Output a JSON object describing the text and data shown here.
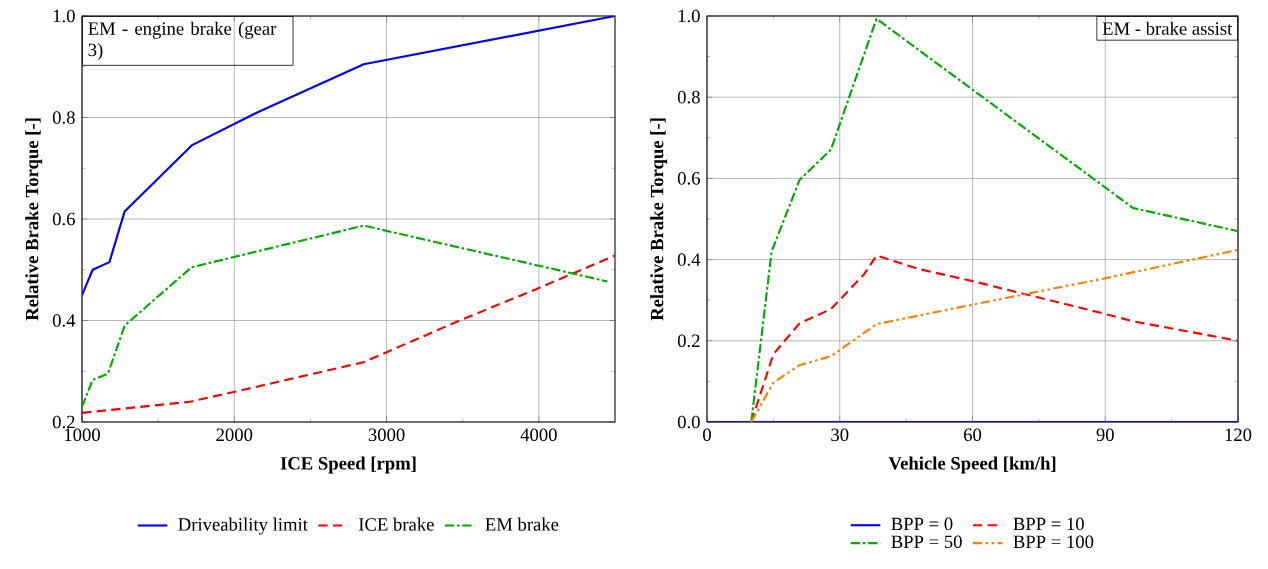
{
  "chart_data": [
    {
      "type": "line",
      "xlabel": "ICE Speed [rpm]",
      "ylabel": "Relative Brake Torque [-]",
      "annotations": [
        "EM - engine brake (gear 3)"
      ],
      "xlim": [
        1000,
        4500
      ],
      "xticks": [
        1000,
        2000,
        3000,
        4000
      ],
      "ylim": [
        0.2,
        1.0
      ],
      "yticks": [
        {
          "value": 0.2,
          "label": "0.2"
        },
        {
          "value": 0.4,
          "label": "0.4"
        },
        {
          "value": 0.6,
          "label": "0.6"
        },
        {
          "value": 0.8,
          "label": "0.8"
        },
        {
          "value": 1.0,
          "label": "1.0"
        }
      ],
      "grid": true,
      "legend": "bottom",
      "series": [
        {
          "name": "Driveability limit",
          "color": "#0000ff",
          "line_style": "solid",
          "x": [
            1000,
            1070,
            1180,
            1280,
            1720,
            2150,
            2850,
            4500
          ],
          "values": [
            0.45,
            0.5,
            0.515,
            0.615,
            0.745,
            0.81,
            0.905,
            1.0
          ]
        },
        {
          "name": "ICE brake",
          "color": "#ff0000",
          "line_style": "dashed",
          "x": [
            1000,
            1710,
            2010,
            2850,
            3480,
            4000,
            4500
          ],
          "values": [
            0.218,
            0.24,
            0.26,
            0.318,
            0.4,
            0.464,
            0.528
          ]
        },
        {
          "name": "EM brake",
          "color": "#00aa00",
          "line_style": "dashdot",
          "x": [
            1000,
            1070,
            1170,
            1280,
            1720,
            2850,
            4450
          ],
          "values": [
            0.23,
            0.283,
            0.295,
            0.39,
            0.505,
            0.587,
            0.477
          ]
        }
      ]
    },
    {
      "type": "line",
      "xlabel": "Vehicle Speed [km/h]",
      "ylabel": "Relative Brake Torque [-]",
      "annotations": [
        "EM - brake assist"
      ],
      "xlim": [
        0,
        120
      ],
      "xticks": [
        0,
        30,
        60,
        90,
        120
      ],
      "ylim": [
        0,
        1.0
      ],
      "yticks": [
        {
          "value": 0,
          "label": "0.0"
        },
        {
          "value": 0.2,
          "label": "0.2"
        },
        {
          "value": 0.4,
          "label": "0.4"
        },
        {
          "value": 0.6,
          "label": "0.6"
        },
        {
          "value": 0.8,
          "label": "0.8"
        },
        {
          "value": 1.0,
          "label": "1.0"
        }
      ],
      "grid": true,
      "legend": "bottom",
      "series": [
        {
          "name": "BPP = 0",
          "color": "#0000ff",
          "line_style": "solid",
          "x": [
            0,
            120
          ],
          "values": [
            0,
            0
          ]
        },
        {
          "name": "BPP = 10",
          "color": "#ff0000",
          "line_style": "dashed",
          "x": [
            10,
            15,
            20.9,
            28,
            35.5,
            38.3,
            47.8,
            60,
            90.4,
            96.3,
            120
          ],
          "values": [
            0,
            0.167,
            0.243,
            0.278,
            0.364,
            0.41,
            0.377,
            0.347,
            0.265,
            0.248,
            0.2
          ]
        },
        {
          "name": "BPP = 50",
          "color": "#00aa00",
          "line_style": "dashdot",
          "x": [
            10,
            14.6,
            20.9,
            28,
            38.3,
            96.3,
            120
          ],
          "values": [
            0,
            0.42,
            0.596,
            0.671,
            0.993,
            0.527,
            0.47
          ]
        },
        {
          "name": "BPP = 100",
          "color": "#ff8000",
          "line_style": "dashdotdot",
          "x": [
            10,
            15,
            20.9,
            28,
            38.3,
            60,
            90.4,
            120
          ],
          "values": [
            0,
            0.097,
            0.14,
            0.162,
            0.241,
            0.289,
            0.355,
            0.424
          ]
        }
      ]
    }
  ]
}
